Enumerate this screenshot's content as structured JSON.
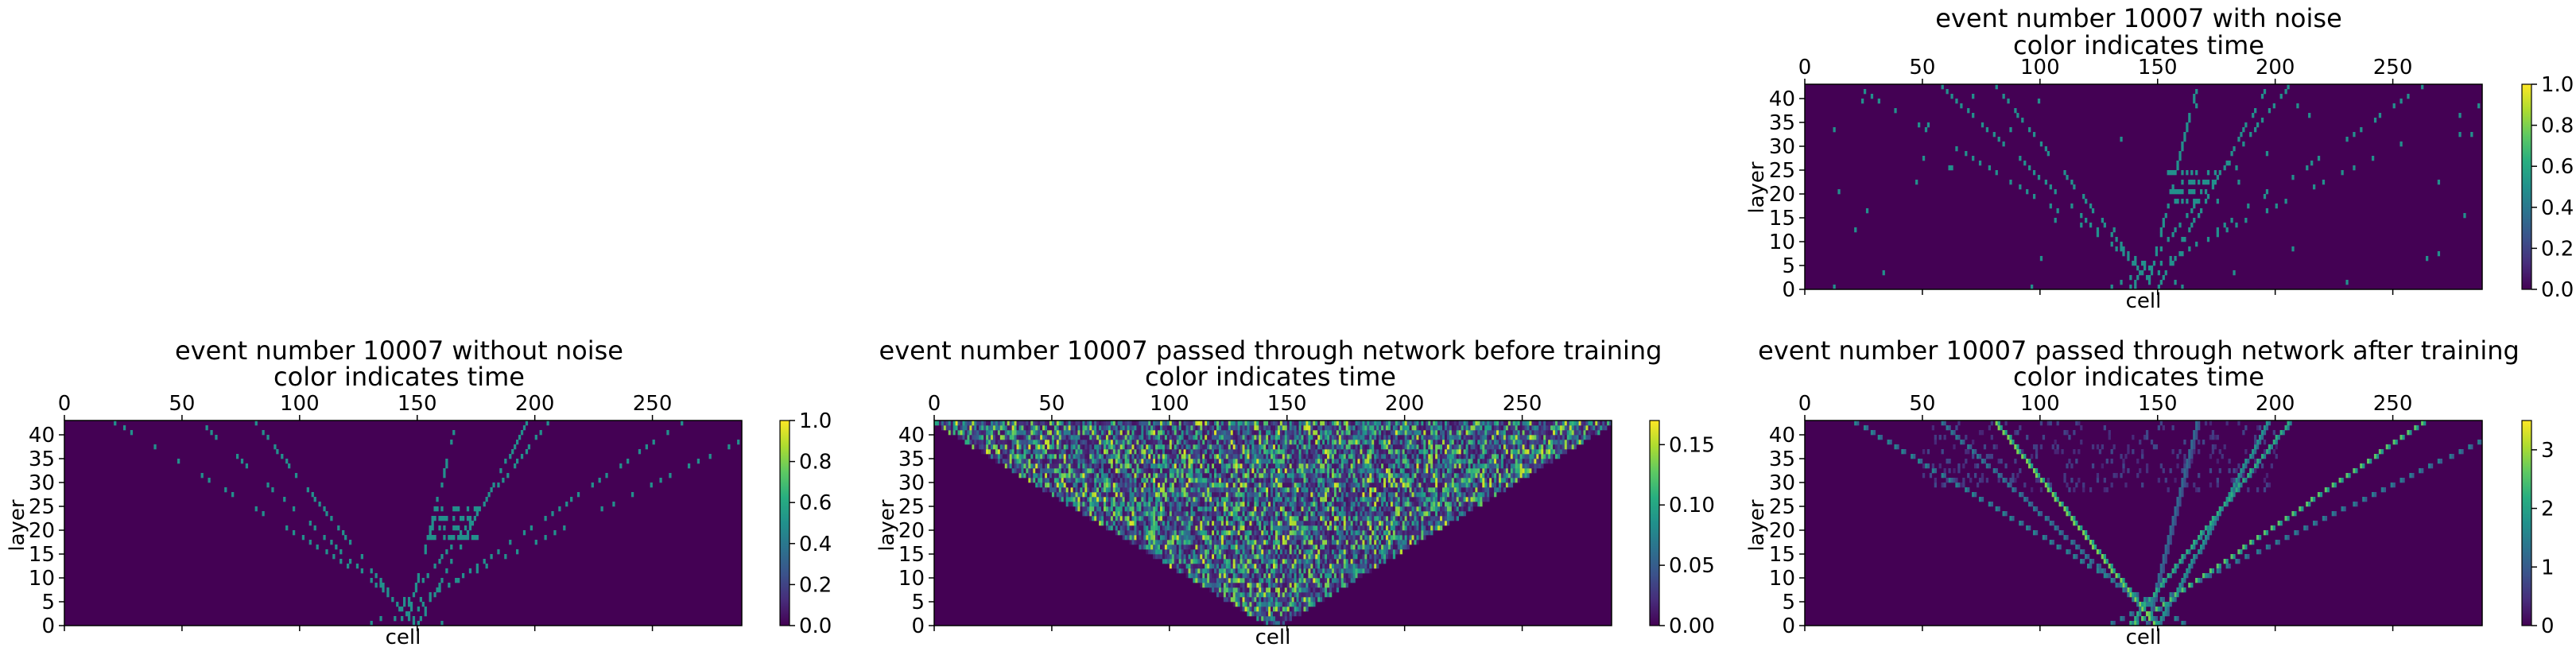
{
  "chart_data": [
    {
      "type": "heatmap",
      "title": "event number 10007 with noise",
      "subtitle": "color indicates time",
      "xlabel": "cell",
      "ylabel": "layer",
      "x_ticks": [
        0,
        50,
        100,
        150,
        200,
        250
      ],
      "y_ticks": [
        0,
        5,
        10,
        15,
        20,
        25,
        30,
        35,
        40
      ],
      "xlim": [
        0,
        288
      ],
      "ylim": [
        0,
        43
      ],
      "colorbar_ticks": [
        "0.0",
        "0.2",
        "0.4",
        "0.6",
        "0.8",
        "1.0"
      ],
      "colorbar_range": [
        0.0,
        1.0
      ],
      "colormap": "viridis",
      "background_color": "#440154",
      "pattern": "sparse_tracks",
      "hit_value": 0.5,
      "tracks": [
        {
          "slope": -1.6,
          "intercept": 148
        },
        {
          "slope": 0.5,
          "intercept": 145
        },
        {
          "slope": -2.2,
          "intercept": 150
        },
        {
          "slope": 1.6,
          "intercept": 138
        },
        {
          "slope": 2.9,
          "intercept": 140
        },
        {
          "slope": -3.3,
          "intercept": 160
        },
        {
          "slope": 1.1,
          "intercept": 150
        },
        {
          "slope": 4.1,
          "intercept": 130
        }
      ],
      "cluster": {
        "x_range": [
          155,
          175
        ],
        "y_range": [
          18,
          24
        ]
      },
      "noise": true
    },
    {
      "type": "heatmap",
      "title": "event number 10007 without noise",
      "subtitle": "color indicates time",
      "xlabel": "cell",
      "ylabel": "layer",
      "x_ticks": [
        0,
        50,
        100,
        150,
        200,
        250
      ],
      "y_ticks": [
        0,
        5,
        10,
        15,
        20,
        25,
        30,
        35,
        40
      ],
      "xlim": [
        0,
        288
      ],
      "ylim": [
        0,
        43
      ],
      "colorbar_ticks": [
        "0.0",
        "0.2",
        "0.4",
        "0.6",
        "0.8",
        "1.0"
      ],
      "colorbar_range": [
        0.0,
        1.0
      ],
      "colormap": "viridis",
      "background_color": "#440154",
      "pattern": "sparse_tracks",
      "hit_value": 0.5,
      "tracks": [
        {
          "slope": -1.6,
          "intercept": 148
        },
        {
          "slope": 0.5,
          "intercept": 145
        },
        {
          "slope": -2.2,
          "intercept": 150
        },
        {
          "slope": 1.6,
          "intercept": 138
        },
        {
          "slope": 2.9,
          "intercept": 140
        },
        {
          "slope": -3.3,
          "intercept": 160
        },
        {
          "slope": 1.1,
          "intercept": 150
        },
        {
          "slope": 4.1,
          "intercept": 130
        }
      ],
      "cluster": {
        "x_range": [
          155,
          175
        ],
        "y_range": [
          18,
          24
        ]
      },
      "noise": false
    },
    {
      "type": "heatmap",
      "title": "event number 10007 passed through network before training",
      "subtitle": "color indicates time",
      "xlabel": "cell",
      "ylabel": "layer",
      "x_ticks": [
        0,
        50,
        100,
        150,
        200,
        250
      ],
      "y_ticks": [
        0,
        5,
        10,
        15,
        20,
        25,
        30,
        35,
        40
      ],
      "xlim": [
        0,
        288
      ],
      "ylim": [
        0,
        43
      ],
      "colorbar_ticks": [
        "0.00",
        "0.05",
        "0.10",
        "0.15"
      ],
      "colorbar_range": [
        0.0,
        0.17
      ],
      "colormap": "viridis",
      "background_color": "#440154",
      "pattern": "dense_cone",
      "cone_apex": [
        144,
        0
      ],
      "cone_top_span": [
        0,
        288
      ],
      "value_range": [
        0.0,
        0.17
      ]
    },
    {
      "type": "heatmap",
      "title": "event number 10007 passed through network after training",
      "subtitle": "color indicates time",
      "xlabel": "cell",
      "ylabel": "layer",
      "x_ticks": [
        0,
        50,
        100,
        150,
        200,
        250
      ],
      "y_ticks": [
        0,
        5,
        10,
        15,
        20,
        25,
        30,
        35,
        40
      ],
      "xlim": [
        0,
        288
      ],
      "ylim": [
        0,
        43
      ],
      "colorbar_ticks": [
        "0",
        "1",
        "2",
        "3"
      ],
      "colorbar_range": [
        0.0,
        3.5
      ],
      "colormap": "viridis",
      "background_color": "#440154",
      "pattern": "smooth_tracks",
      "tracks": [
        {
          "slope": -1.6,
          "intercept": 148,
          "value": 2.8
        },
        {
          "slope": 0.5,
          "intercept": 145,
          "value": 1.2
        },
        {
          "slope": -2.2,
          "intercept": 150,
          "value": 1.4
        },
        {
          "slope": 1.6,
          "intercept": 138,
          "value": 2.2
        },
        {
          "slope": 2.9,
          "intercept": 140,
          "value": 2.6
        },
        {
          "slope": -3.3,
          "intercept": 160,
          "value": 1.6
        },
        {
          "slope": 1.1,
          "intercept": 150,
          "value": 1.8
        },
        {
          "slope": 4.1,
          "intercept": 130,
          "value": 1.5
        }
      ],
      "diffuse_region": {
        "x_range": [
          50,
          200
        ],
        "y_range": [
          28,
          43
        ],
        "value": 0.8
      }
    }
  ]
}
